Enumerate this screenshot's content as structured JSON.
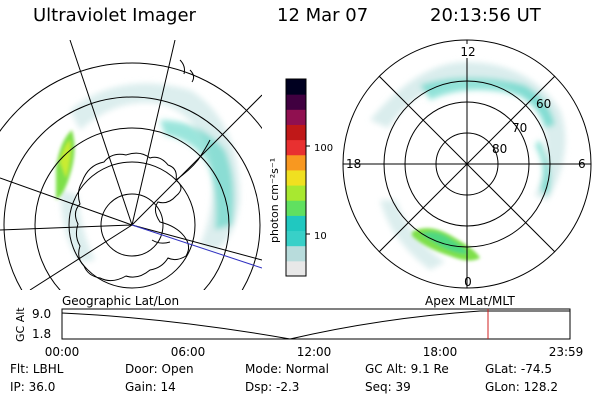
{
  "header": {
    "instrument": "Ultraviolet Imager",
    "date": "12 Mar 07",
    "time": "20:13:56 UT"
  },
  "left_map": {
    "label": "Geographic Lat/Lon"
  },
  "right_map": {
    "label": "Apex  MLat/MLT",
    "mlt_labels": [
      "12",
      "6",
      "0",
      "18"
    ],
    "lat_labels": [
      "60",
      "70",
      "80"
    ]
  },
  "colorbar": {
    "unit_label": "photon cm⁻²s⁻¹",
    "tick_labels": [
      "100",
      "10"
    ],
    "colors": [
      "#e8e8e8",
      "#b8dcdc",
      "#38d0c8",
      "#20c8c0",
      "#60e060",
      "#a8e830",
      "#f0e020",
      "#f89820",
      "#e83030",
      "#c01818",
      "#901050",
      "#400040",
      "#000020"
    ]
  },
  "altitude_strip": {
    "axis_label": "GC Alt",
    "y_labels": [
      "9.0",
      "1.8"
    ],
    "x_labels": [
      "00:00",
      "06:00",
      "12:00",
      "18:00",
      "23:59"
    ]
  },
  "status": {
    "row1": [
      {
        "key": "Flt:",
        "value": "LBHL"
      },
      {
        "key": "Door:",
        "value": "Open"
      },
      {
        "key": "Mode:",
        "value": "Normal"
      },
      {
        "key": "GC Alt:",
        "value": "9.1 Re"
      },
      {
        "key": "GLat:",
        "value": "-74.5"
      }
    ],
    "row2": [
      {
        "key": "IP:",
        "value": "36.0"
      },
      {
        "key": "Gain:",
        "value": "14"
      },
      {
        "key": "Dsp:",
        "value": "-2.3"
      },
      {
        "key": "Seq:",
        "value": "39"
      },
      {
        "key": "GLon:",
        "value": "128.2"
      }
    ]
  }
}
